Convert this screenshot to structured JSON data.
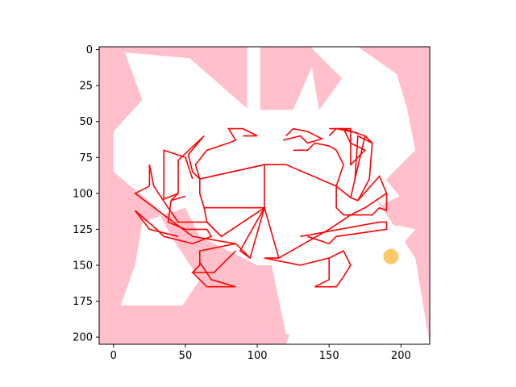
{
  "chart_data": {
    "type": "image",
    "title": "",
    "xlabel": "",
    "ylabel": "",
    "xlim": [
      -10,
      220
    ],
    "ylim": [
      205,
      -2
    ],
    "y_inverted": true,
    "x_ticks": [
      0,
      50,
      100,
      150,
      200
    ],
    "y_ticks": [
      0,
      25,
      50,
      75,
      100,
      125,
      150,
      175,
      200
    ],
    "x_tick_labels": [
      "0",
      "50",
      "100",
      "150",
      "200"
    ],
    "y_tick_labels": [
      "0",
      "25",
      "50",
      "75",
      "100",
      "125",
      "150",
      "175",
      "200"
    ],
    "image_extent": {
      "x": [
        -10,
        220
      ],
      "y": [
        -2,
        205
      ]
    },
    "background_color": "#ffc0cb",
    "white_region_color": "#ffffff",
    "line_color": "#ff0000",
    "marker_color": "#ffa500",
    "white_regions": [
      {
        "name": "white-region-top-left",
        "points": [
          [
            8,
            2
          ],
          [
            53,
            6
          ],
          [
            93,
            41
          ],
          [
            93,
            -2
          ],
          [
            102,
            -2
          ],
          [
            102,
            42
          ],
          [
            125,
            42
          ],
          [
            138,
            12
          ],
          [
            143,
            42
          ],
          [
            159,
            20
          ],
          [
            137,
            -2
          ],
          [
            170,
            -2
          ],
          [
            197,
            17
          ],
          [
            204,
            40
          ],
          [
            210,
            70
          ],
          [
            180,
            100
          ],
          [
            210,
            145
          ],
          [
            220,
            205
          ],
          [
            120,
            205
          ],
          [
            140,
            150
          ],
          [
            100,
            150
          ],
          [
            60,
            130
          ],
          [
            50,
            110
          ],
          [
            20,
            120
          ],
          [
            15,
            150
          ],
          [
            5,
            178
          ],
          [
            48,
            178
          ],
          [
            60,
            160
          ],
          [
            40,
            130
          ],
          [
            30,
            110
          ],
          [
            0,
            85
          ],
          [
            0,
            57
          ],
          [
            20,
            35
          ]
        ]
      },
      {
        "name": "white-region-bottom-right",
        "points": [
          [
            120,
            198
          ],
          [
            183,
            198
          ],
          [
            190,
            200
          ],
          [
            203,
            180
          ],
          [
            182,
            162
          ],
          [
            175,
            166
          ],
          [
            210,
            125
          ],
          [
            175,
            118
          ],
          [
            183,
            100
          ],
          [
            150,
            130
          ],
          [
            110,
            150
          ]
        ]
      },
      {
        "name": "white-region-mid-right",
        "points": [
          [
            175,
            95
          ],
          [
            185,
            85
          ],
          [
            199,
            102
          ],
          [
            187,
            108
          ]
        ]
      }
    ],
    "crab_polylines": [
      [
        [
          105,
          80
        ],
        [
          105,
          110
        ],
        [
          115,
          145
        ],
        [
          150,
          125
        ],
        [
          165,
          115
        ]
      ],
      [
        [
          105,
          80
        ],
        [
          120,
          80
        ],
        [
          155,
          95
        ],
        [
          155,
          110
        ],
        [
          160,
          115
        ],
        [
          165,
          115
        ]
      ],
      [
        [
          105,
          80
        ],
        [
          60,
          90
        ],
        [
          60,
          100
        ],
        [
          63,
          110
        ],
        [
          105,
          110
        ],
        [
          88,
          140
        ]
      ],
      [
        [
          105,
          110
        ],
        [
          95,
          145
        ],
        [
          88,
          140
        ]
      ],
      [
        [
          63,
          110
        ],
        [
          65,
          120
        ],
        [
          75,
          130
        ],
        [
          105,
          110
        ]
      ],
      [
        [
          155,
          95
        ],
        [
          165,
          103
        ],
        [
          170,
          105
        ],
        [
          185,
          88
        ],
        [
          190,
          100
        ],
        [
          175,
          110
        ],
        [
          165,
          115
        ]
      ],
      [
        [
          165,
          115
        ],
        [
          180,
          115
        ],
        [
          185,
          110
        ],
        [
          190,
          112
        ],
        [
          190,
          100
        ]
      ],
      [
        [
          130,
          130
        ],
        [
          185,
          120
        ],
        [
          190,
          120
        ],
        [
          190,
          125
        ],
        [
          155,
          130
        ],
        [
          150,
          135
        ],
        [
          135,
          130
        ]
      ],
      [
        [
          60,
          90
        ],
        [
          57,
          80
        ],
        [
          65,
          70
        ],
        [
          80,
          65
        ],
        [
          85,
          63
        ],
        [
          80,
          55
        ],
        [
          90,
          55
        ],
        [
          100,
          60
        ],
        [
          90,
          60
        ]
      ],
      [
        [
          60,
          90
        ],
        [
          55,
          85
        ],
        [
          52,
          73
        ],
        [
          63,
          60
        ],
        [
          45,
          77
        ],
        [
          45,
          100
        ],
        [
          40,
          105
        ],
        [
          50,
          102
        ]
      ],
      [
        [
          45,
          100
        ],
        [
          35,
          104
        ],
        [
          35,
          70
        ],
        [
          50,
          75
        ],
        [
          55,
          90
        ]
      ],
      [
        [
          40,
          105
        ],
        [
          38,
          120
        ],
        [
          50,
          125
        ],
        [
          65,
          125
        ],
        [
          68,
          130
        ],
        [
          55,
          135
        ],
        [
          35,
          130
        ],
        [
          30,
          125
        ],
        [
          15,
          112
        ],
        [
          25,
          125
        ],
        [
          45,
          130
        ]
      ],
      [
        [
          25,
          95
        ],
        [
          25,
          80
        ],
        [
          28,
          95
        ],
        [
          38,
          110
        ],
        [
          45,
          120
        ],
        [
          65,
          120
        ],
        [
          75,
          130
        ]
      ],
      [
        [
          25,
          95
        ],
        [
          15,
          100
        ],
        [
          35,
          115
        ],
        [
          55,
          130
        ],
        [
          85,
          135
        ],
        [
          95,
          145
        ]
      ],
      [
        [
          85,
          135
        ],
        [
          60,
          140
        ],
        [
          60,
          150
        ],
        [
          55,
          155
        ],
        [
          70,
          155
        ],
        [
          85,
          140
        ]
      ],
      [
        [
          60,
          150
        ],
        [
          55,
          155
        ],
        [
          65,
          165
        ],
        [
          85,
          165
        ],
        [
          68,
          160
        ],
        [
          60,
          148
        ]
      ],
      [
        [
          115,
          145
        ],
        [
          105,
          145
        ],
        [
          130,
          150
        ],
        [
          150,
          145
        ],
        [
          160,
          140
        ],
        [
          165,
          150
        ],
        [
          160,
          158
        ],
        [
          155,
          165
        ],
        [
          140,
          165
        ],
        [
          150,
          160
        ],
        [
          150,
          145
        ]
      ],
      [
        [
          120,
          60
        ],
        [
          125,
          55
        ],
        [
          135,
          57
        ],
        [
          145,
          62
        ],
        [
          135,
          65
        ],
        [
          130,
          60
        ],
        [
          118,
          63
        ]
      ],
      [
        [
          125,
          70
        ],
        [
          135,
          70
        ],
        [
          140,
          65
        ],
        [
          150,
          67
        ],
        [
          155,
          70
        ],
        [
          160,
          80
        ],
        [
          155,
          95
        ]
      ],
      [
        [
          150,
          55
        ],
        [
          165,
          55
        ],
        [
          165,
          80
        ],
        [
          170,
          75
        ],
        [
          175,
          70
        ],
        [
          165,
          65
        ],
        [
          160,
          55
        ],
        [
          175,
          60
        ],
        [
          180,
          65
        ],
        [
          170,
          60
        ],
        [
          168,
          90
        ]
      ],
      [
        [
          165,
          103
        ],
        [
          168,
          90
        ],
        [
          175,
          60
        ],
        [
          180,
          65
        ],
        [
          178,
          90
        ],
        [
          170,
          105
        ]
      ],
      [
        [
          150,
          60
        ],
        [
          155,
          55
        ],
        [
          170,
          58
        ]
      ]
    ],
    "markers": [
      {
        "name": "orange-circle-marker",
        "x": 193,
        "y": 144,
        "label": ""
      }
    ]
  }
}
